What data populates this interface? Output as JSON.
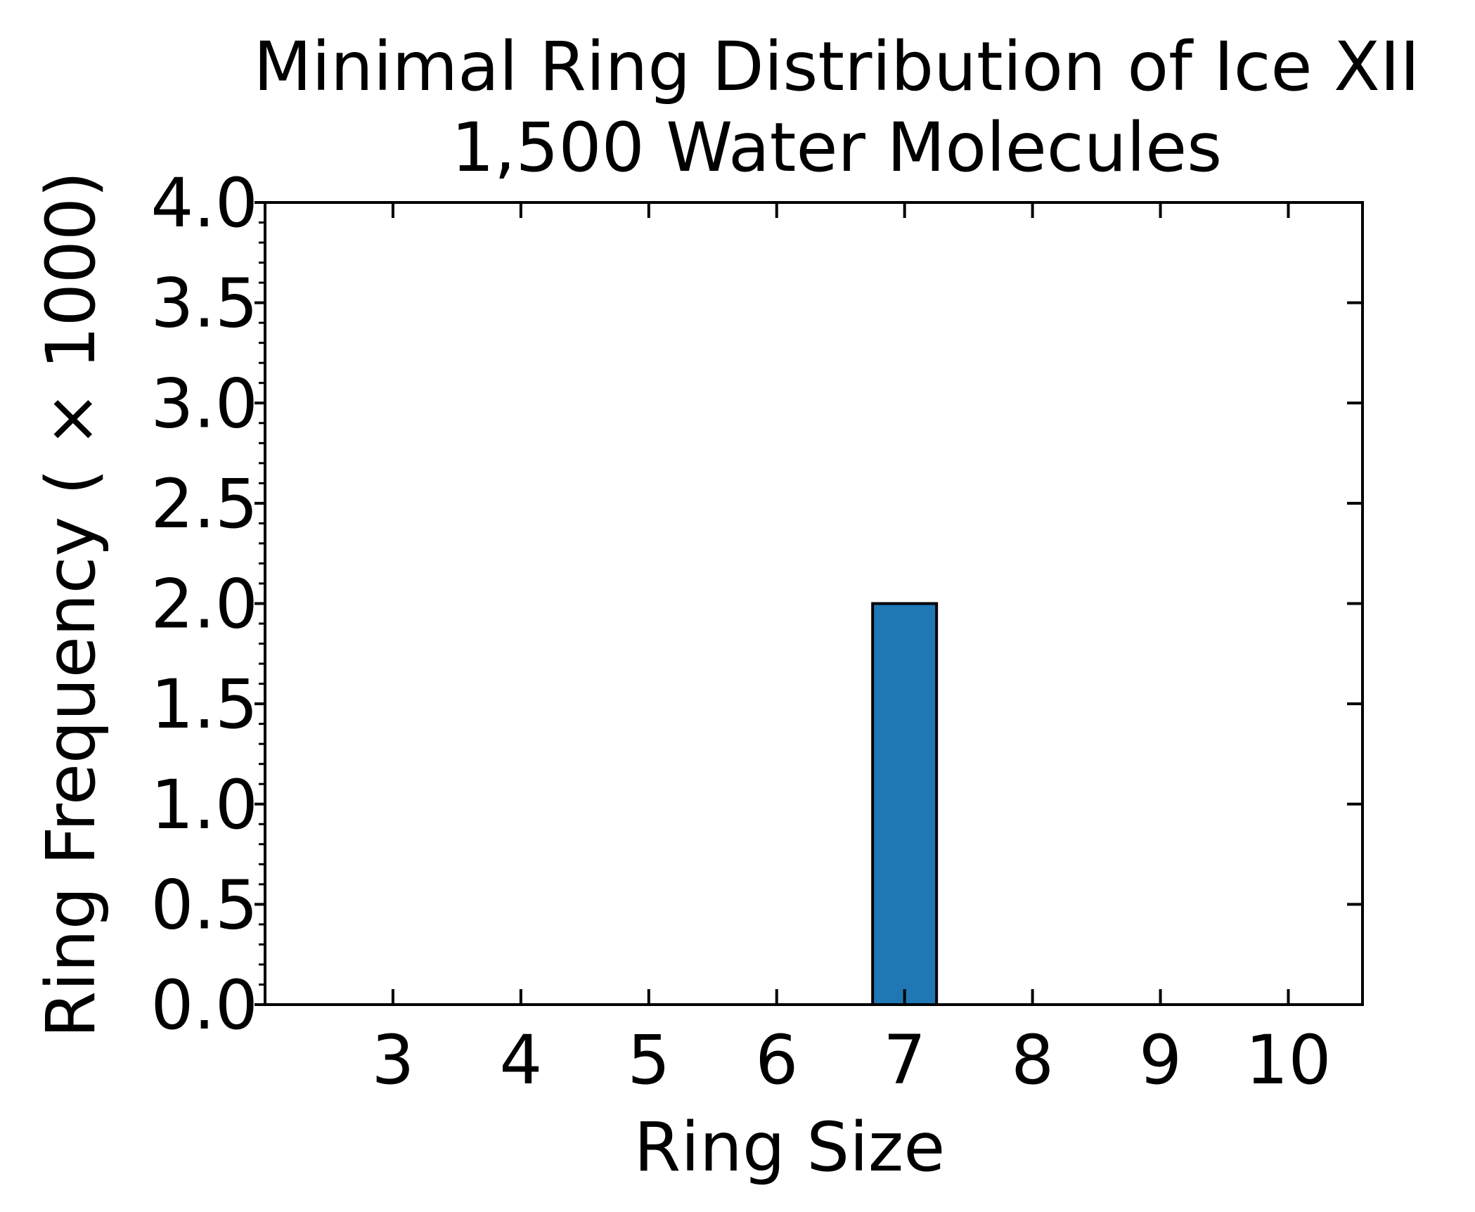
{
  "chart_data": {
    "type": "bar",
    "title": "Minimal Ring Distribution of Ice XII",
    "subtitle": "1,500 Water Molecules",
    "xlabel": "Ring Size",
    "ylabel": "Ring Frequency ( × 1000)",
    "categories": [
      3,
      4,
      5,
      6,
      7,
      8,
      9,
      10
    ],
    "x_tick_labels": [
      "3",
      "4",
      "5",
      "6",
      "7",
      "8",
      "9",
      "10"
    ],
    "values": [
      0,
      0,
      0,
      0,
      2.0,
      0,
      0,
      0
    ],
    "xlim": [
      2.0,
      10.58
    ],
    "ylim": [
      0,
      4.0
    ],
    "y_ticks": [
      0,
      0.5,
      1.0,
      1.5,
      2.0,
      2.5,
      3.0,
      3.5,
      4.0
    ],
    "y_tick_labels": [
      "0.0",
      "0.5",
      "1.0",
      "1.5",
      "2.0",
      "2.5",
      "3.0",
      "3.5",
      "4.0"
    ],
    "y_minor_step": 0.1,
    "bar_width": 0.5,
    "grid": false,
    "legend": "none",
    "colors": {
      "bar_fill": "#1f77b4",
      "bar_edge": "#000000",
      "axes": "#000000",
      "background": "#ffffff"
    }
  }
}
